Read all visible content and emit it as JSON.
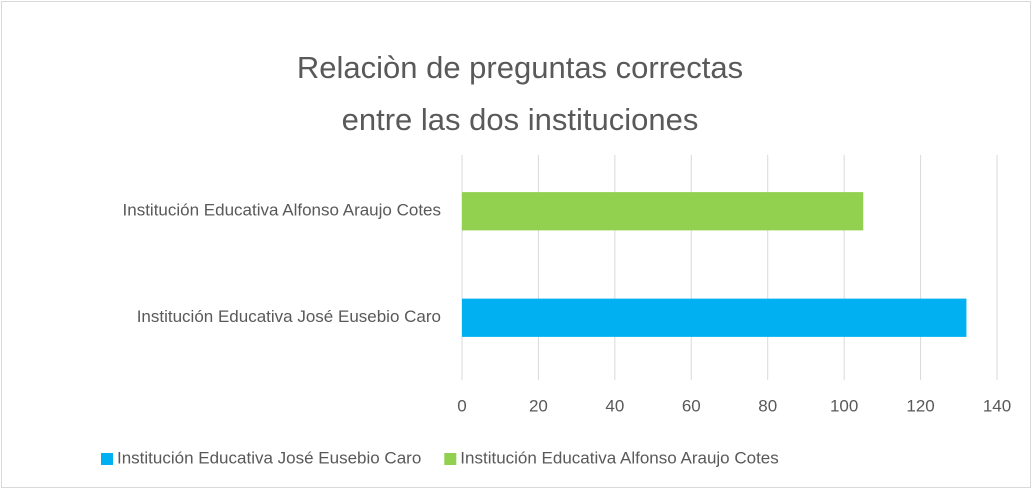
{
  "chart_data": {
    "type": "hbar",
    "title": "Relaciòn de preguntas correctas entre las dos instituciones",
    "categories": [
      "Institución Educativa José Eusebio Caro",
      "Institución Educativa Alfonso Araujo Cotes"
    ],
    "values": [
      132,
      105
    ],
    "colors": [
      "#00b0f0",
      "#92d050"
    ],
    "xlim": [
      0,
      140
    ],
    "xticks": [
      0,
      20,
      40,
      60,
      80,
      100,
      120,
      140
    ],
    "grid": true,
    "legend": "bottom"
  }
}
